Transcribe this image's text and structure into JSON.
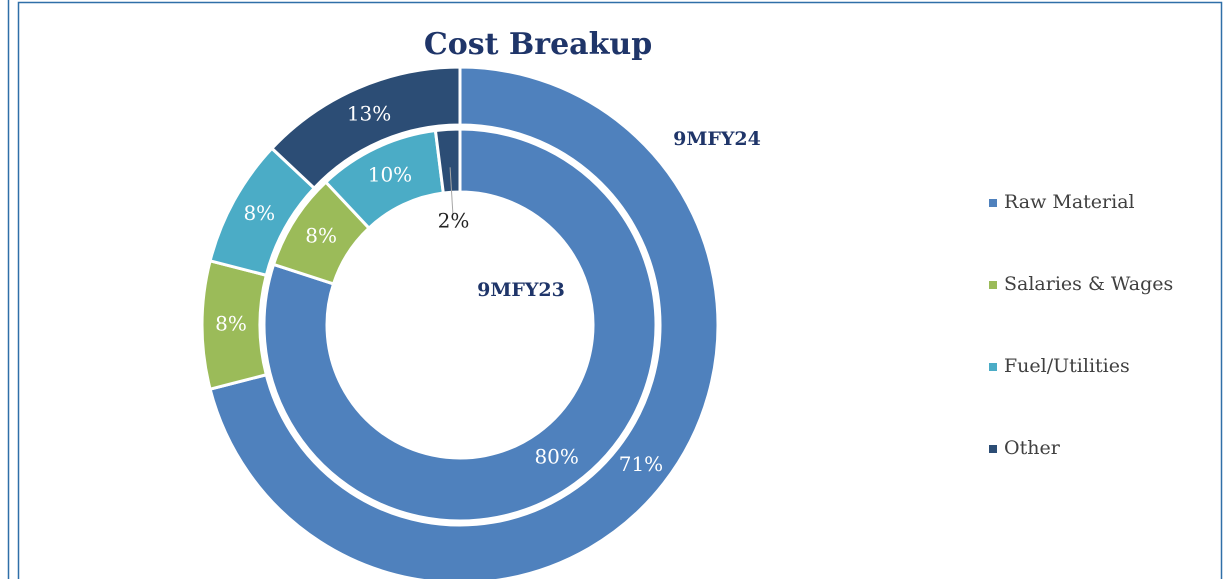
{
  "chart_data": {
    "type": "doughnut",
    "title": "Cost Breakup",
    "categories": [
      "Raw Material",
      "Salaries & Wages",
      "Fuel/Utilities",
      "Other"
    ],
    "colors": [
      "#4f81bd",
      "#9bbb59",
      "#4bacc6",
      "#2c4d75"
    ],
    "series": [
      {
        "name": "9MFY23",
        "values": [
          80,
          8,
          10,
          2
        ],
        "value_labels": [
          "80%",
          "8%",
          "10%",
          "2%"
        ]
      },
      {
        "name": "9MFY24",
        "values": [
          71,
          8,
          8,
          13
        ],
        "value_labels": [
          "71%",
          "8%",
          "8%",
          "13%"
        ]
      }
    ],
    "legend": "right"
  }
}
